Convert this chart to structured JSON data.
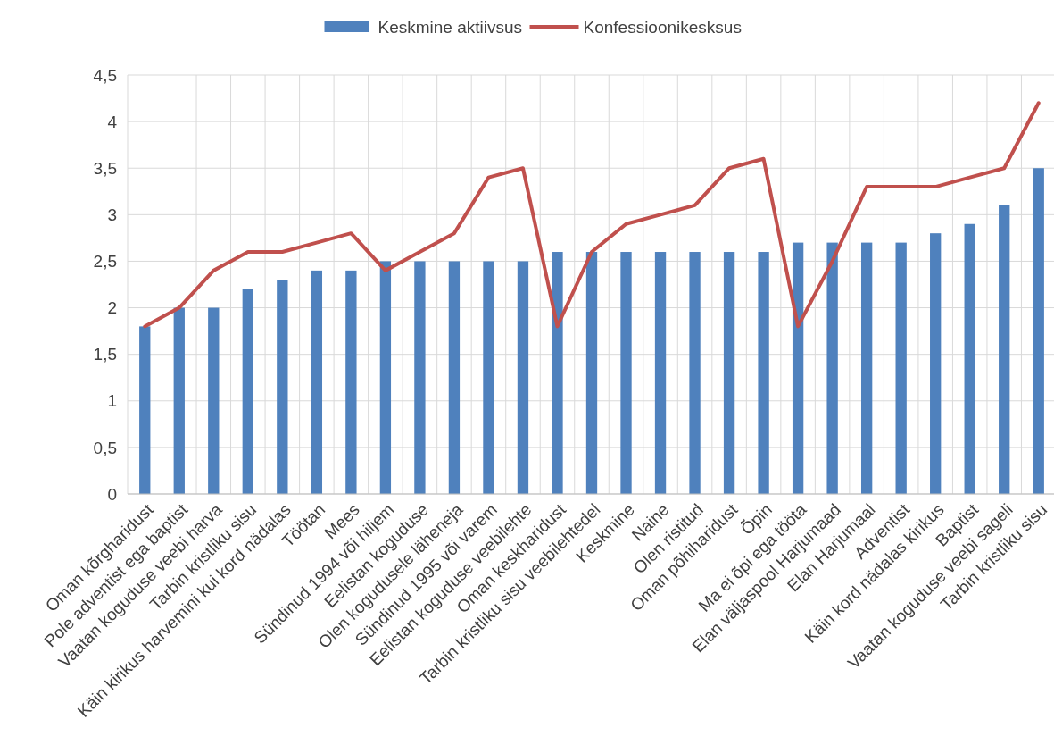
{
  "chart_data": {
    "type": "bar",
    "categories": [
      "Oman kõrgharidust",
      "Pole adventist ega baptist",
      "Vaatan koguduse veebi harva",
      "Tarbin kristliku sisu",
      "Käin kirikus harvemini kui kord nädalas",
      "Töötan",
      "Mees",
      "Sündinud 1994 või hiljem",
      "Eelistan koguduse",
      "Olen kogudusele läheneja",
      "Sündinud 1995 või varem",
      "Eelistan koguduse veebilehte",
      "Oman keskharidust",
      "Tarbin kristliku sisu veebilehtedel",
      "Keskmine",
      "Naine",
      "Olen ristitud",
      "Oman põhiharidust",
      "Õpin",
      "Ma ei õpi ega tööta",
      "Elan väljaspool Harjumaad",
      "Elan Harjumaal",
      "Adventist",
      "Käin kord nädalas kirikus",
      "Baptist",
      "Vaatan koguduse veebi sageli",
      "Tarbin kristliku sisu"
    ],
    "series": [
      {
        "name": "Keskmine aktiivsus",
        "color": "#4f81bd",
        "values": [
          1.8,
          2.0,
          2.0,
          2.2,
          2.3,
          2.4,
          2.4,
          2.5,
          2.5,
          2.5,
          2.5,
          2.5,
          2.6,
          2.6,
          2.6,
          2.6,
          2.6,
          2.6,
          2.6,
          2.7,
          2.7,
          2.7,
          2.7,
          2.8,
          2.9,
          3.1,
          3.5
        ]
      },
      {
        "name": "Konfessioonikesksus",
        "type": "line",
        "color": "#c0504d",
        "values": [
          1.8,
          2.0,
          2.4,
          2.6,
          2.6,
          2.7,
          2.8,
          2.4,
          2.6,
          2.8,
          3.4,
          3.5,
          1.8,
          2.6,
          2.9,
          3.0,
          3.1,
          3.5,
          3.6,
          1.8,
          2.5,
          3.3,
          3.3,
          3.3,
          3.4,
          3.5,
          4.2
        ]
      }
    ],
    "ylim": [
      0,
      4.5
    ],
    "yticks": [
      0,
      {
        "value": 0.5,
        "label": "0,5"
      },
      1,
      {
        "value": 1.5,
        "label": "1,5"
      },
      2,
      {
        "value": 2.5,
        "label": "2,5"
      },
      3,
      {
        "value": 3.5,
        "label": "3,5"
      },
      4,
      {
        "value": 4.5,
        "label": "4,5"
      }
    ],
    "grid": true,
    "legend": "top",
    "marker": "none",
    "line_style": "solid"
  }
}
